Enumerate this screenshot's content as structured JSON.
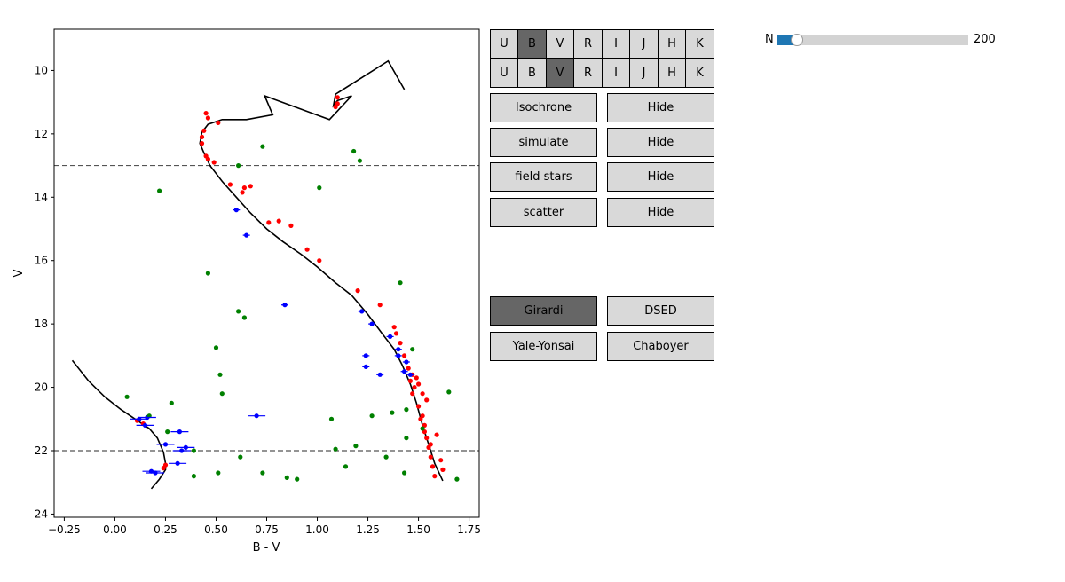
{
  "chart_data": {
    "type": "scatter",
    "xlabel": "B - V",
    "ylabel": "V",
    "xlim": [
      -0.3,
      1.8
    ],
    "ylim": [
      24.1,
      8.7
    ],
    "y_inverted": true,
    "xticks": [
      -0.25,
      0.0,
      0.25,
      0.5,
      0.75,
      1.0,
      1.25,
      1.5,
      1.75
    ],
    "xtick_labels": [
      "−0.25",
      "0.00",
      "0.25",
      "0.50",
      "0.75",
      "1.00",
      "1.25",
      "1.50",
      "1.75"
    ],
    "yticks": [
      10,
      12,
      14,
      16,
      18,
      20,
      22,
      24
    ],
    "ytick_labels": [
      "10",
      "12",
      "14",
      "16",
      "18",
      "20",
      "22",
      "24"
    ],
    "hlines": [
      13.0,
      22.0
    ],
    "isochrone": {
      "color": "#000000",
      "segments": [
        [
          [
            -0.21,
            19.15
          ],
          [
            -0.13,
            19.8
          ],
          [
            -0.05,
            20.3
          ],
          [
            0.03,
            20.7
          ],
          [
            0.1,
            21.0
          ],
          [
            0.17,
            21.3
          ],
          [
            0.21,
            21.6
          ],
          [
            0.24,
            22.05
          ],
          [
            0.25,
            22.4
          ],
          [
            0.25,
            22.6
          ],
          [
            0.22,
            22.9
          ],
          [
            0.18,
            23.2
          ]
        ],
        [
          [
            1.62,
            22.95
          ],
          [
            1.58,
            22.4
          ],
          [
            1.55,
            21.8
          ],
          [
            1.52,
            21.2
          ],
          [
            1.49,
            20.5
          ],
          [
            1.46,
            19.9
          ],
          [
            1.42,
            19.3
          ],
          [
            1.38,
            18.8
          ],
          [
            1.32,
            18.3
          ],
          [
            1.25,
            17.7
          ],
          [
            1.17,
            17.1
          ],
          [
            1.09,
            16.7
          ],
          [
            1.0,
            16.2
          ],
          [
            0.92,
            15.8
          ],
          [
            0.83,
            15.4
          ],
          [
            0.75,
            15.0
          ],
          [
            0.67,
            14.5
          ],
          [
            0.6,
            14.0
          ],
          [
            0.53,
            13.5
          ],
          [
            0.47,
            13.0
          ],
          [
            0.44,
            12.6
          ],
          [
            0.42,
            12.3
          ],
          [
            0.43,
            11.95
          ],
          [
            0.46,
            11.7
          ],
          [
            0.53,
            11.55
          ],
          [
            0.65,
            11.55
          ],
          [
            0.78,
            11.4
          ],
          [
            0.74,
            10.8
          ],
          [
            1.06,
            11.55
          ],
          [
            1.17,
            10.8
          ],
          [
            1.1,
            10.95
          ],
          [
            1.08,
            11.1
          ],
          [
            1.09,
            10.75
          ],
          [
            1.35,
            9.7
          ],
          [
            1.43,
            10.6
          ]
        ]
      ]
    },
    "series": [
      {
        "color": "#ff0000",
        "points": [
          [
            0.45,
            11.35
          ],
          [
            0.46,
            11.5
          ],
          [
            0.44,
            11.9
          ],
          [
            0.43,
            12.1
          ],
          [
            0.43,
            12.3
          ],
          [
            0.45,
            12.7
          ],
          [
            0.46,
            12.8
          ],
          [
            0.49,
            12.9
          ],
          [
            0.51,
            11.65
          ],
          [
            0.57,
            13.6
          ],
          [
            0.63,
            13.85
          ],
          [
            0.64,
            13.7
          ],
          [
            0.67,
            13.65
          ],
          [
            0.76,
            14.8
          ],
          [
            0.81,
            14.75
          ],
          [
            0.87,
            14.9
          ],
          [
            0.95,
            15.65
          ],
          [
            1.01,
            16.0
          ],
          [
            1.1,
            10.85
          ],
          [
            1.09,
            11.15
          ],
          [
            1.1,
            11.05
          ],
          [
            1.2,
            16.95
          ],
          [
            1.31,
            17.4
          ],
          [
            1.38,
            18.1
          ],
          [
            1.39,
            18.3
          ],
          [
            1.41,
            18.6
          ],
          [
            1.43,
            19.0
          ],
          [
            1.45,
            19.4
          ],
          [
            1.46,
            19.8
          ],
          [
            1.47,
            19.6
          ],
          [
            1.48,
            20.0
          ],
          [
            1.49,
            19.7
          ],
          [
            1.5,
            19.9
          ],
          [
            1.47,
            20.2
          ],
          [
            1.5,
            20.6
          ],
          [
            1.52,
            20.9
          ],
          [
            1.53,
            21.2
          ],
          [
            1.54,
            21.6
          ],
          [
            1.55,
            21.9
          ],
          [
            1.56,
            22.2
          ],
          [
            1.57,
            22.5
          ],
          [
            1.58,
            22.8
          ],
          [
            1.61,
            22.3
          ],
          [
            1.62,
            22.6
          ],
          [
            1.59,
            21.5
          ],
          [
            1.54,
            20.4
          ],
          [
            1.52,
            20.2
          ],
          [
            1.51,
            21.0
          ],
          [
            1.53,
            21.4
          ],
          [
            1.56,
            21.8
          ],
          [
            0.24,
            22.55
          ],
          [
            0.25,
            22.45
          ],
          [
            0.11,
            21.05
          ],
          [
            0.14,
            21.15
          ]
        ]
      },
      {
        "color": "#0000ff",
        "points": [
          [
            0.12,
            21.0
          ],
          [
            0.15,
            21.2
          ],
          [
            0.16,
            20.95
          ],
          [
            0.25,
            21.8
          ],
          [
            0.32,
            21.4
          ],
          [
            0.35,
            21.9
          ],
          [
            0.33,
            22.0
          ],
          [
            0.31,
            22.4
          ],
          [
            0.2,
            22.7
          ],
          [
            0.18,
            22.65
          ],
          [
            0.6,
            14.4
          ],
          [
            0.65,
            15.2
          ],
          [
            0.84,
            17.4
          ],
          [
            0.7,
            20.9
          ],
          [
            1.22,
            17.6
          ],
          [
            1.24,
            19.0
          ],
          [
            1.24,
            19.35
          ],
          [
            1.31,
            19.6
          ],
          [
            1.4,
            19.0
          ],
          [
            1.43,
            19.5
          ],
          [
            1.44,
            19.2
          ],
          [
            1.46,
            19.6
          ],
          [
            1.27,
            18.0
          ],
          [
            1.36,
            18.4
          ],
          [
            1.4,
            18.8
          ]
        ]
      },
      {
        "color": "#008000",
        "points": [
          [
            0.06,
            20.3
          ],
          [
            0.17,
            20.9
          ],
          [
            0.22,
            13.8
          ],
          [
            0.26,
            21.4
          ],
          [
            0.28,
            20.5
          ],
          [
            0.39,
            22.0
          ],
          [
            0.39,
            22.8
          ],
          [
            0.46,
            16.4
          ],
          [
            0.5,
            18.75
          ],
          [
            0.51,
            22.7
          ],
          [
            0.52,
            19.6
          ],
          [
            0.53,
            20.2
          ],
          [
            0.61,
            13.0
          ],
          [
            0.61,
            17.6
          ],
          [
            0.62,
            22.2
          ],
          [
            0.64,
            17.8
          ],
          [
            0.73,
            12.4
          ],
          [
            0.73,
            22.7
          ],
          [
            0.85,
            22.85
          ],
          [
            0.9,
            22.9
          ],
          [
            1.01,
            13.7
          ],
          [
            1.07,
            21.0
          ],
          [
            1.09,
            21.95
          ],
          [
            1.14,
            22.5
          ],
          [
            1.18,
            12.55
          ],
          [
            1.19,
            21.85
          ],
          [
            1.21,
            12.85
          ],
          [
            1.27,
            20.9
          ],
          [
            1.34,
            22.2
          ],
          [
            1.37,
            20.8
          ],
          [
            1.41,
            16.7
          ],
          [
            1.43,
            22.7
          ],
          [
            1.44,
            20.7
          ],
          [
            1.44,
            21.6
          ],
          [
            1.47,
            18.8
          ],
          [
            1.52,
            21.3
          ],
          [
            1.65,
            20.15
          ],
          [
            1.69,
            22.9
          ]
        ]
      }
    ]
  },
  "filters_row1": {
    "labels": [
      "U",
      "B",
      "V",
      "R",
      "I",
      "J",
      "H",
      "K"
    ],
    "active_index": 1
  },
  "filters_row2": {
    "labels": [
      "U",
      "B",
      "V",
      "R",
      "I",
      "J",
      "H",
      "K"
    ],
    "active_index": 2
  },
  "layer_buttons": [
    {
      "label": "Isochrone",
      "toggle": "Hide"
    },
    {
      "label": "simulate",
      "toggle": "Hide"
    },
    {
      "label": "field stars",
      "toggle": "Hide"
    },
    {
      "label": "scatter",
      "toggle": "Hide"
    }
  ],
  "models": {
    "girardi": "Girardi",
    "dsed": "DSED",
    "yale": "Yale-Yonsai",
    "chaboyer": "Chaboyer",
    "active": "Girardi"
  },
  "slider": {
    "label": "N",
    "value": 20,
    "max": 200,
    "max_label": "200",
    "fill_color": "#1f77b4"
  }
}
